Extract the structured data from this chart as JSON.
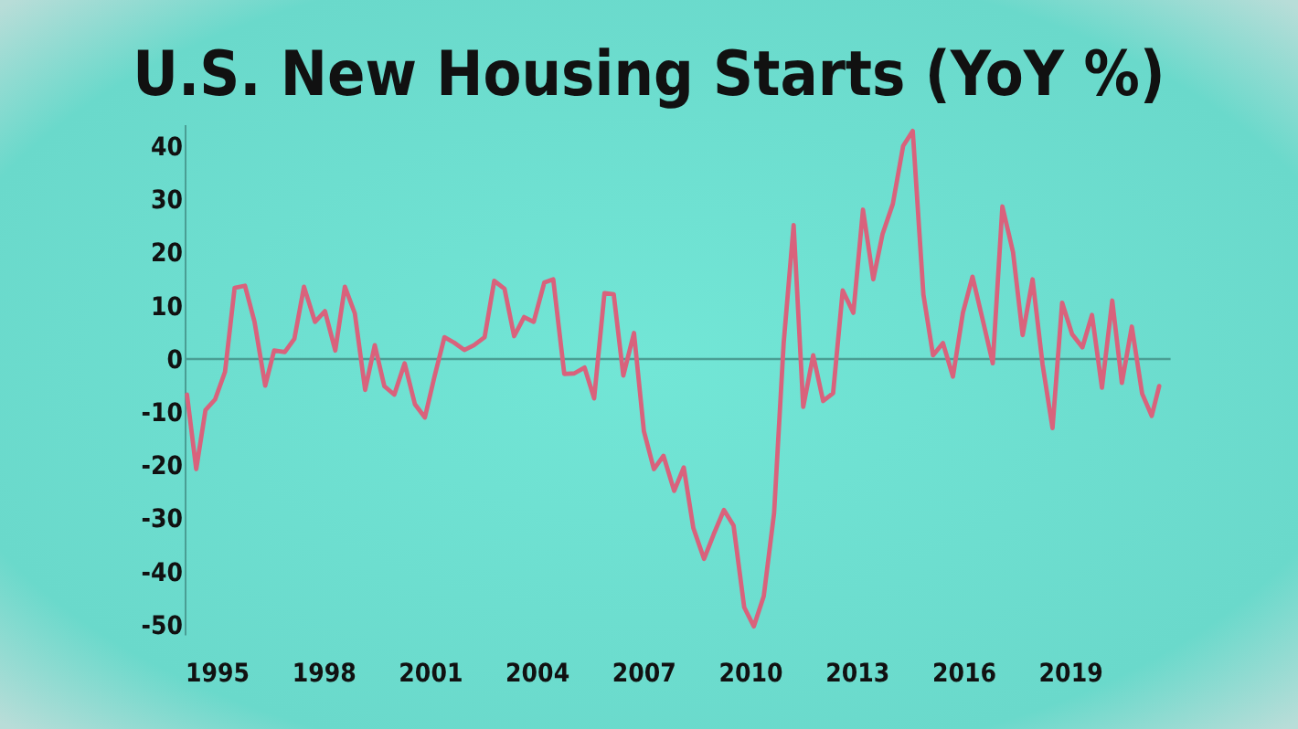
{
  "chart_data": {
    "type": "line",
    "title": "U.S. New Housing Starts (YoY %)",
    "x": [
      1994.14,
      1994.4,
      1994.66,
      1994.93,
      1995.21,
      1995.48,
      1995.77,
      1996.04,
      1996.34,
      1996.59,
      1996.89,
      1997.16,
      1997.43,
      1997.74,
      1998.02,
      1998.31,
      1998.58,
      1998.86,
      1999.15,
      1999.42,
      1999.69,
      1999.97,
      2000.26,
      2000.55,
      2000.83,
      2001.1,
      2001.38,
      2001.65,
      2001.94,
      2002.21,
      2002.51,
      2002.78,
      2003.07,
      2003.34,
      2003.62,
      2003.89,
      2004.19,
      2004.44,
      2004.75,
      2005.03,
      2005.32,
      2005.59,
      2005.88,
      2006.14,
      2006.41,
      2006.71,
      2006.99,
      2007.27,
      2007.54,
      2007.84,
      2008.11,
      2008.38,
      2008.68,
      2008.95,
      2009.24,
      2009.51,
      2009.81,
      2010.08,
      2010.36,
      2010.65,
      2010.92,
      2011.2,
      2011.47,
      2011.75,
      2012.03,
      2012.31,
      2012.58,
      2012.88,
      2013.15,
      2013.44,
      2013.7,
      2013.99,
      2014.28,
      2014.55,
      2014.85,
      2015.12,
      2015.4,
      2015.68,
      2015.96,
      2016.23,
      2016.53,
      2016.8,
      2017.07,
      2017.37,
      2017.64,
      2017.92,
      2018.2,
      2018.48,
      2018.75,
      2019.03,
      2019.32,
      2019.59,
      2019.87,
      2020.16,
      2020.43,
      2020.71,
      2021.0,
      2021.27,
      2021.48
    ],
    "series": [
      {
        "color": "#d9627c",
        "values": [
          -6.7,
          -20.7,
          -9.6,
          -7.6,
          -2.4,
          13.4,
          13.8,
          7,
          -5,
          1.6,
          1.3,
          3.8,
          13.6,
          7,
          9,
          1.6,
          13.6,
          8.6,
          -5.8,
          2.6,
          -5.1,
          -6.7,
          -0.8,
          -8.5,
          -11,
          -3.3,
          4.1,
          3.1,
          1.7,
          2.6,
          4.1,
          14.7,
          13.2,
          4.3,
          7.9,
          7,
          14.4,
          15,
          -2.8,
          -2.7,
          -1.6,
          -7.4,
          12.4,
          12.2,
          -3.1,
          4.9,
          -13.6,
          -20.7,
          -18.2,
          -24.8,
          -20.4,
          -31.8,
          -37.6,
          -33,
          -28.4,
          -31.3,
          -46.7,
          -50.3,
          -44.6,
          -29,
          3,
          25.2,
          -9,
          0.7,
          -7.9,
          -6.4,
          12.9,
          8.7,
          28.1,
          15,
          23.5,
          29.2,
          40.1,
          42.9,
          12.1,
          0.7,
          3,
          -3.3,
          8.7,
          15.5,
          7,
          -0.8,
          28.7,
          20.1,
          4.5,
          15,
          -1,
          -13,
          10.6,
          4.7,
          2.2,
          8.3,
          -5.4,
          11,
          -4.5,
          6.1,
          -6.5,
          -10.7,
          -5.1
        ]
      }
    ],
    "xlim": [
      1994.1,
      2021.8
    ],
    "ylim": [
      -52,
      44
    ],
    "xticks": [
      1995,
      1998,
      2001,
      2004,
      2007,
      2010,
      2013,
      2016,
      2019
    ],
    "yticks": [
      -50,
      -40,
      -30,
      -20,
      -10,
      0,
      10,
      20,
      30,
      40
    ],
    "ref_lines": [
      {
        "axis": "y",
        "value": 0,
        "color": "#4a9e94"
      }
    ],
    "line_style": "solid",
    "marker": "none"
  }
}
